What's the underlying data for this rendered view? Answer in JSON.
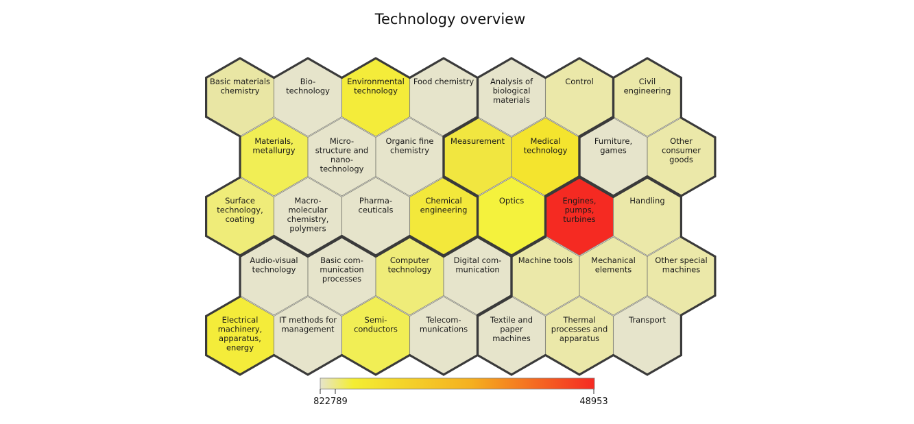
{
  "chart_data": {
    "type": "heatmap",
    "title": "Technology overview",
    "colorbar": {
      "min_label": "822789",
      "max_label": "48953"
    },
    "colors": {
      "low": "#e6e4cb",
      "mid": "#f5f032",
      "high": "#f52a22",
      "hex_stroke": "#8a8a7c",
      "group_stroke": "#3a3a3a"
    },
    "cells": [
      {
        "name": "Basic materials chemistry",
        "lines": [
          "Basic materials",
          "chemistry"
        ],
        "color": "#e9e6a4",
        "row": 0,
        "col": 0,
        "group": 1
      },
      {
        "name": "Biotechnology",
        "lines": [
          "Bio-",
          "technology"
        ],
        "color": "#e6e4cb",
        "row": 0,
        "col": 1,
        "group": 1
      },
      {
        "name": "Environmental technology",
        "lines": [
          "Environmental",
          "technology"
        ],
        "color": "#f4ec3a",
        "row": 0,
        "col": 2,
        "group": 1
      },
      {
        "name": "Food chemistry",
        "lines": [
          "Food chemistry"
        ],
        "color": "#e6e4cb",
        "row": 0,
        "col": 3,
        "group": 1
      },
      {
        "name": "Analysis of biological materials",
        "lines": [
          "Analysis of",
          "biological",
          "materials"
        ],
        "color": "#e6e4cb",
        "row": 0,
        "col": 4,
        "group": 2
      },
      {
        "name": "Control",
        "lines": [
          "Control"
        ],
        "color": "#ebe8a9",
        "row": 0,
        "col": 5,
        "group": 2
      },
      {
        "name": "Civil engineering",
        "lines": [
          "Civil",
          "engineering"
        ],
        "color": "#ebe8a9",
        "row": 0,
        "col": 6,
        "group": 3
      },
      {
        "name": "Materials, metallurgy",
        "lines": [
          "Materials,",
          "metallurgy"
        ],
        "color": "#f1ee55",
        "row": 1,
        "col": 0,
        "group": 1
      },
      {
        "name": "Micro-structure and nano-technology",
        "lines": [
          "Micro-",
          "structure and",
          "nano-",
          "technology"
        ],
        "color": "#e6e4cb",
        "row": 1,
        "col": 1,
        "group": 1
      },
      {
        "name": "Organic fine chemistry",
        "lines": [
          "Organic fine",
          "chemistry"
        ],
        "color": "#e6e4cb",
        "row": 1,
        "col": 2,
        "group": 1
      },
      {
        "name": "Measurement",
        "lines": [
          "Measurement"
        ],
        "color": "#f1e640",
        "row": 1,
        "col": 3,
        "group": 2
      },
      {
        "name": "Medical technology",
        "lines": [
          "Medical",
          "technology"
        ],
        "color": "#f4e42e",
        "row": 1,
        "col": 4,
        "group": 2
      },
      {
        "name": "Furniture, games",
        "lines": [
          "Furniture,",
          "games"
        ],
        "color": "#e6e4cb",
        "row": 1,
        "col": 5,
        "group": 3
      },
      {
        "name": "Other consumer goods",
        "lines": [
          "Other",
          "consumer",
          "goods"
        ],
        "color": "#ebe8a9",
        "row": 1,
        "col": 6,
        "group": 3
      },
      {
        "name": "Surface technology, coating",
        "lines": [
          "Surface",
          "technology,",
          "coating"
        ],
        "color": "#efec79",
        "row": 2,
        "col": 0,
        "group": 1
      },
      {
        "name": "Macro-molecular chemistry, polymers",
        "lines": [
          "Macro-",
          "molecular",
          "chemistry,",
          "polymers"
        ],
        "color": "#e6e4cb",
        "row": 2,
        "col": 1,
        "group": 1
      },
      {
        "name": "Pharma-ceuticals",
        "lines": [
          "Pharma-",
          "ceuticals"
        ],
        "color": "#e6e4cb",
        "row": 2,
        "col": 2,
        "group": 1
      },
      {
        "name": "Chemical engineering",
        "lines": [
          "Chemical",
          "engineering"
        ],
        "color": "#f3e83b",
        "row": 2,
        "col": 3,
        "group": 1
      },
      {
        "name": "Optics",
        "lines": [
          "Optics"
        ],
        "color": "#f4f23d",
        "row": 2,
        "col": 4,
        "group": 2
      },
      {
        "name": "Engines, pumps, turbines",
        "lines": [
          "Engines,",
          "pumps,",
          "turbines"
        ],
        "color": "#f52a22",
        "row": 2,
        "col": 5,
        "group": 4
      },
      {
        "name": "Handling",
        "lines": [
          "Handling"
        ],
        "color": "#ebe8a9",
        "row": 2,
        "col": 6,
        "group": 4
      },
      {
        "name": "Audio-visual technology",
        "lines": [
          "Audio-visual",
          "technology"
        ],
        "color": "#e6e4cb",
        "row": 3,
        "col": 0,
        "group": 5
      },
      {
        "name": "Basic communication processes",
        "lines": [
          "Basic com-",
          "munication",
          "processes"
        ],
        "color": "#e6e4cb",
        "row": 3,
        "col": 1,
        "group": 5
      },
      {
        "name": "Computer technology",
        "lines": [
          "Computer",
          "technology"
        ],
        "color": "#efec79",
        "row": 3,
        "col": 2,
        "group": 5
      },
      {
        "name": "Digital communication",
        "lines": [
          "Digital com-",
          "munication"
        ],
        "color": "#e6e4cb",
        "row": 3,
        "col": 3,
        "group": 5
      },
      {
        "name": "Machine tools",
        "lines": [
          "Machine tools"
        ],
        "color": "#ebe8a9",
        "row": 3,
        "col": 4,
        "group": 4
      },
      {
        "name": "Mechanical elements",
        "lines": [
          "Mechanical",
          "elements"
        ],
        "color": "#ebe8a9",
        "row": 3,
        "col": 5,
        "group": 4
      },
      {
        "name": "Other special machines",
        "lines": [
          "Other special",
          "machines"
        ],
        "color": "#ebe8a9",
        "row": 3,
        "col": 6,
        "group": 4
      },
      {
        "name": "Electrical machinery, apparatus, energy",
        "lines": [
          "Electrical",
          "machinery,",
          "apparatus,",
          "energy"
        ],
        "color": "#f4ec3a",
        "row": 4,
        "col": 0,
        "group": 5
      },
      {
        "name": "IT methods for management",
        "lines": [
          "IT methods for",
          "management"
        ],
        "color": "#e6e4cb",
        "row": 4,
        "col": 1,
        "group": 5
      },
      {
        "name": "Semi-conductors",
        "lines": [
          "Semi-",
          "conductors"
        ],
        "color": "#f1ee55",
        "row": 4,
        "col": 2,
        "group": 5
      },
      {
        "name": "Telecom-munications",
        "lines": [
          "Telecom-",
          "munications"
        ],
        "color": "#e6e4cb",
        "row": 4,
        "col": 3,
        "group": 5
      },
      {
        "name": "Textile and paper machines",
        "lines": [
          "Textile and",
          "paper",
          "machines"
        ],
        "color": "#e6e4cb",
        "row": 4,
        "col": 4,
        "group": 4
      },
      {
        "name": "Thermal processes and apparatus",
        "lines": [
          "Thermal",
          "processes and",
          "apparatus"
        ],
        "color": "#ebe8a9",
        "row": 4,
        "col": 5,
        "group": 4
      },
      {
        "name": "Transport",
        "lines": [
          "Transport"
        ],
        "color": "#e6e4cb",
        "row": 4,
        "col": 6,
        "group": 4
      }
    ]
  }
}
